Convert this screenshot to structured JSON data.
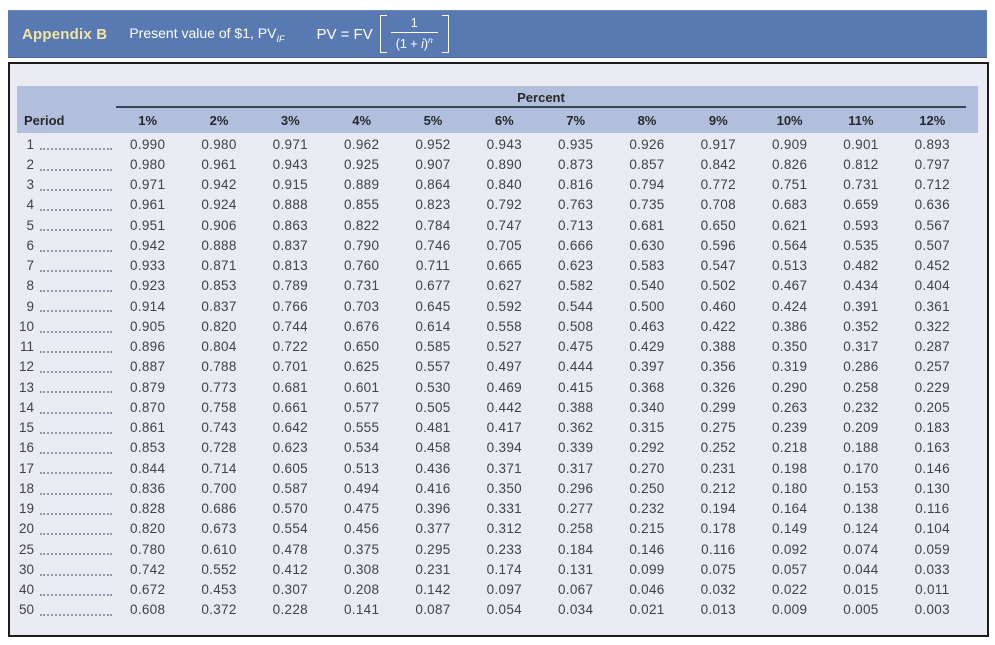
{
  "header": {
    "appendix_label": "Appendix B",
    "title_text": "Present value of $1, PV",
    "title_subscript": "IF",
    "formula": {
      "lhs": "PV = FV",
      "numerator": "1",
      "den_open": "(1 + ",
      "den_i": "i",
      "den_close": ")",
      "exponent": "n"
    }
  },
  "colors": {
    "band_blue": "#5879b2",
    "appendix_gold": "#f2e5a4",
    "box_fill": "#e9ebf3",
    "header_band": "#b1bfdc",
    "percent_rule": "#3a4253",
    "outer_border": "#1c1c1c",
    "data_text": "#3f4246"
  },
  "table": {
    "group_header": "Percent",
    "period_header": "Period",
    "columns": [
      "1%",
      "2%",
      "3%",
      "4%",
      "5%",
      "6%",
      "7%",
      "8%",
      "9%",
      "10%",
      "11%",
      "12%"
    ],
    "rows": [
      {
        "period": "1",
        "values": [
          "0.990",
          "0.980",
          "0.971",
          "0.962",
          "0.952",
          "0.943",
          "0.935",
          "0.926",
          "0.917",
          "0.909",
          "0.901",
          "0.893"
        ]
      },
      {
        "period": "2",
        "values": [
          "0.980",
          "0.961",
          "0.943",
          "0.925",
          "0.907",
          "0.890",
          "0.873",
          "0.857",
          "0.842",
          "0.826",
          "0.812",
          "0.797"
        ]
      },
      {
        "period": "3",
        "values": [
          "0.971",
          "0.942",
          "0.915",
          "0.889",
          "0.864",
          "0.840",
          "0.816",
          "0.794",
          "0.772",
          "0.751",
          "0.731",
          "0.712"
        ]
      },
      {
        "period": "4",
        "values": [
          "0.961",
          "0.924",
          "0.888",
          "0.855",
          "0.823",
          "0.792",
          "0.763",
          "0.735",
          "0.708",
          "0.683",
          "0.659",
          "0.636"
        ]
      },
      {
        "period": "5",
        "values": [
          "0.951",
          "0.906",
          "0.863",
          "0.822",
          "0.784",
          "0.747",
          "0.713",
          "0.681",
          "0.650",
          "0.621",
          "0.593",
          "0.567"
        ]
      },
      {
        "period": "6",
        "values": [
          "0.942",
          "0.888",
          "0.837",
          "0.790",
          "0.746",
          "0.705",
          "0.666",
          "0.630",
          "0.596",
          "0.564",
          "0.535",
          "0.507"
        ]
      },
      {
        "period": "7",
        "values": [
          "0.933",
          "0.871",
          "0.813",
          "0.760",
          "0.711",
          "0.665",
          "0.623",
          "0.583",
          "0.547",
          "0.513",
          "0.482",
          "0.452"
        ]
      },
      {
        "period": "8",
        "values": [
          "0.923",
          "0.853",
          "0.789",
          "0.731",
          "0.677",
          "0.627",
          "0.582",
          "0.540",
          "0.502",
          "0.467",
          "0.434",
          "0.404"
        ]
      },
      {
        "period": "9",
        "values": [
          "0.914",
          "0.837",
          "0.766",
          "0.703",
          "0.645",
          "0.592",
          "0.544",
          "0.500",
          "0.460",
          "0.424",
          "0.391",
          "0.361"
        ]
      },
      {
        "period": "10",
        "values": [
          "0.905",
          "0.820",
          "0.744",
          "0.676",
          "0.614",
          "0.558",
          "0.508",
          "0.463",
          "0.422",
          "0.386",
          "0.352",
          "0.322"
        ]
      },
      {
        "period": "11",
        "values": [
          "0.896",
          "0.804",
          "0.722",
          "0.650",
          "0.585",
          "0.527",
          "0.475",
          "0.429",
          "0.388",
          "0.350",
          "0.317",
          "0.287"
        ]
      },
      {
        "period": "12",
        "values": [
          "0.887",
          "0.788",
          "0.701",
          "0.625",
          "0.557",
          "0.497",
          "0.444",
          "0.397",
          "0.356",
          "0.319",
          "0.286",
          "0.257"
        ]
      },
      {
        "period": "13",
        "values": [
          "0.879",
          "0.773",
          "0.681",
          "0.601",
          "0.530",
          "0.469",
          "0.415",
          "0.368",
          "0.326",
          "0.290",
          "0.258",
          "0.229"
        ]
      },
      {
        "period": "14",
        "values": [
          "0.870",
          "0.758",
          "0.661",
          "0.577",
          "0.505",
          "0.442",
          "0.388",
          "0.340",
          "0.299",
          "0.263",
          "0.232",
          "0.205"
        ]
      },
      {
        "period": "15",
        "values": [
          "0.861",
          "0.743",
          "0.642",
          "0.555",
          "0.481",
          "0.417",
          "0.362",
          "0.315",
          "0.275",
          "0.239",
          "0.209",
          "0.183"
        ]
      },
      {
        "period": "16",
        "values": [
          "0.853",
          "0.728",
          "0.623",
          "0.534",
          "0.458",
          "0.394",
          "0.339",
          "0.292",
          "0.252",
          "0.218",
          "0.188",
          "0.163"
        ]
      },
      {
        "period": "17",
        "values": [
          "0.844",
          "0.714",
          "0.605",
          "0.513",
          "0.436",
          "0.371",
          "0.317",
          "0.270",
          "0.231",
          "0.198",
          "0.170",
          "0.146"
        ]
      },
      {
        "period": "18",
        "values": [
          "0.836",
          "0.700",
          "0.587",
          "0.494",
          "0.416",
          "0.350",
          "0.296",
          "0.250",
          "0.212",
          "0.180",
          "0.153",
          "0.130"
        ]
      },
      {
        "period": "19",
        "values": [
          "0.828",
          "0.686",
          "0.570",
          "0.475",
          "0.396",
          "0.331",
          "0.277",
          "0.232",
          "0.194",
          "0.164",
          "0.138",
          "0.116"
        ]
      },
      {
        "period": "20",
        "values": [
          "0.820",
          "0.673",
          "0.554",
          "0.456",
          "0.377",
          "0.312",
          "0.258",
          "0.215",
          "0.178",
          "0.149",
          "0.124",
          "0.104"
        ]
      },
      {
        "period": "25",
        "values": [
          "0.780",
          "0.610",
          "0.478",
          "0.375",
          "0.295",
          "0.233",
          "0.184",
          "0.146",
          "0.116",
          "0.092",
          "0.074",
          "0.059"
        ]
      },
      {
        "period": "30",
        "values": [
          "0.742",
          "0.552",
          "0.412",
          "0.308",
          "0.231",
          "0.174",
          "0.131",
          "0.099",
          "0.075",
          "0.057",
          "0.044",
          "0.033"
        ]
      },
      {
        "period": "40",
        "values": [
          "0.672",
          "0.453",
          "0.307",
          "0.208",
          "0.142",
          "0.097",
          "0.067",
          "0.046",
          "0.032",
          "0.022",
          "0.015",
          "0.011"
        ]
      },
      {
        "period": "50",
        "values": [
          "0.608",
          "0.372",
          "0.228",
          "0.141",
          "0.087",
          "0.054",
          "0.034",
          "0.021",
          "0.013",
          "0.009",
          "0.005",
          "0.003"
        ]
      }
    ]
  }
}
